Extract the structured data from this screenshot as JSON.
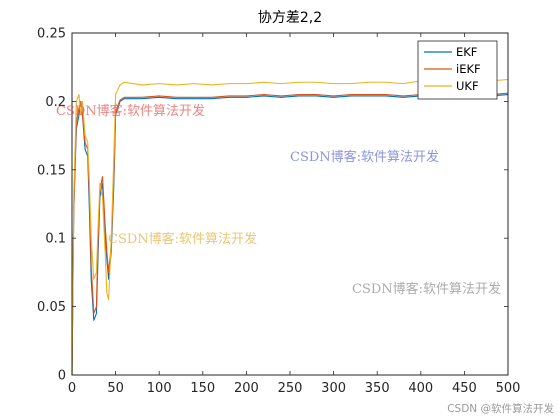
{
  "chart_data": {
    "type": "line",
    "title": "协方差2,2",
    "xlabel": "",
    "ylabel": "",
    "xlim": [
      0,
      500
    ],
    "ylim": [
      0,
      0.25
    ],
    "xticks": [
      0,
      50,
      100,
      150,
      200,
      250,
      300,
      350,
      400,
      450,
      500
    ],
    "yticks": [
      0,
      0.05,
      0.1,
      0.15,
      0.2,
      0.25
    ],
    "ytick_labels": [
      "0",
      "0.05",
      "0.1",
      "0.15",
      "0.2",
      "0.25"
    ],
    "grid": false,
    "legend_position": "top-right",
    "series": [
      {
        "name": "EKF",
        "color": "#0072BD",
        "x": [
          0,
          2,
          5,
          8,
          10,
          12,
          15,
          18,
          20,
          22,
          25,
          28,
          30,
          32,
          35,
          38,
          40,
          42,
          45,
          48,
          50,
          55,
          60,
          80,
          100,
          120,
          140,
          160,
          180,
          200,
          220,
          240,
          260,
          280,
          300,
          320,
          340,
          360,
          380,
          400,
          420,
          440,
          460,
          480,
          500
        ],
        "y": [
          0,
          0.12,
          0.18,
          0.19,
          0.2,
          0.19,
          0.165,
          0.16,
          0.12,
          0.07,
          0.04,
          0.045,
          0.09,
          0.13,
          0.14,
          0.1,
          0.085,
          0.07,
          0.09,
          0.14,
          0.19,
          0.2,
          0.202,
          0.202,
          0.203,
          0.202,
          0.202,
          0.202,
          0.203,
          0.203,
          0.204,
          0.203,
          0.204,
          0.204,
          0.203,
          0.204,
          0.204,
          0.204,
          0.203,
          0.204,
          0.203,
          0.204,
          0.203,
          0.204,
          0.205
        ]
      },
      {
        "name": "iEKF",
        "color": "#D95319",
        "x": [
          0,
          2,
          5,
          8,
          10,
          12,
          15,
          18,
          20,
          22,
          25,
          28,
          30,
          32,
          35,
          38,
          40,
          42,
          45,
          48,
          50,
          55,
          60,
          80,
          100,
          120,
          140,
          160,
          180,
          200,
          220,
          240,
          260,
          280,
          300,
          320,
          340,
          360,
          380,
          400,
          420,
          440,
          460,
          480,
          500
        ],
        "y": [
          0,
          0.12,
          0.185,
          0.195,
          0.2,
          0.19,
          0.17,
          0.165,
          0.13,
          0.08,
          0.045,
          0.05,
          0.1,
          0.135,
          0.145,
          0.11,
          0.09,
          0.075,
          0.095,
          0.145,
          0.192,
          0.201,
          0.203,
          0.203,
          0.204,
          0.203,
          0.203,
          0.203,
          0.204,
          0.204,
          0.205,
          0.204,
          0.205,
          0.205,
          0.204,
          0.205,
          0.205,
          0.205,
          0.204,
          0.205,
          0.204,
          0.205,
          0.204,
          0.205,
          0.206
        ]
      },
      {
        "name": "UKF",
        "color": "#EDB120",
        "x": [
          0,
          2,
          5,
          8,
          10,
          12,
          15,
          18,
          20,
          22,
          25,
          28,
          30,
          32,
          35,
          38,
          40,
          42,
          45,
          48,
          50,
          55,
          60,
          80,
          100,
          120,
          140,
          160,
          180,
          200,
          220,
          240,
          260,
          280,
          300,
          320,
          340,
          360,
          380,
          400,
          420,
          440,
          460,
          480,
          500
        ],
        "y": [
          0,
          0.13,
          0.2,
          0.205,
          0.19,
          0.2,
          0.175,
          0.17,
          0.14,
          0.1,
          0.07,
          0.075,
          0.11,
          0.14,
          0.13,
          0.09,
          0.06,
          0.055,
          0.1,
          0.16,
          0.205,
          0.212,
          0.214,
          0.212,
          0.213,
          0.212,
          0.213,
          0.212,
          0.213,
          0.213,
          0.214,
          0.213,
          0.214,
          0.214,
          0.213,
          0.213,
          0.214,
          0.214,
          0.213,
          0.215,
          0.214,
          0.215,
          0.214,
          0.215,
          0.216
        ]
      }
    ]
  },
  "watermarks": {
    "a": "CSDN博客:软件算法开发",
    "b": "CSDN博客:软件算法开发",
    "c": "CSDN博客:软件算法开发",
    "d": "CSDN博客:软件算法开发",
    "corner": "CSDN @软件算法开发"
  }
}
